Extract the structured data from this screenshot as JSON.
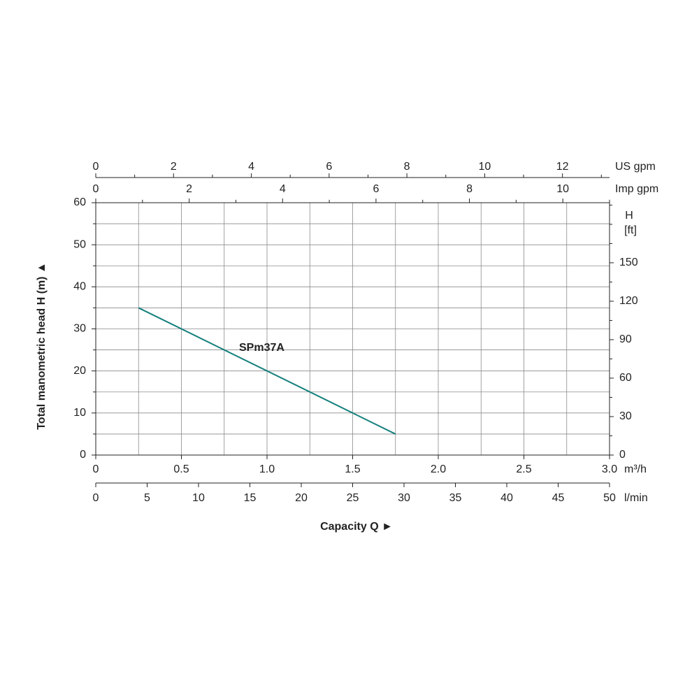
{
  "chart_data": {
    "type": "line",
    "x_label": "Capacity Q  ►",
    "y_label": "Total manometric head H (m)  ▲",
    "x_unit": "m³/h",
    "xlim": [
      0,
      3
    ],
    "xticks": [
      0,
      0.5,
      {
        "value": 1,
        "label": "1.0"
      },
      1.5,
      {
        "value": 2,
        "label": "2.0"
      },
      2.5,
      {
        "value": 3,
        "label": "3.0"
      }
    ],
    "xminor": [
      0.25,
      0.75,
      1.25,
      1.75,
      2.25,
      2.75
    ],
    "ylim": [
      0,
      60
    ],
    "yticks": [
      0,
      10,
      20,
      30,
      40,
      50,
      60
    ],
    "yminor": [
      5,
      15,
      25,
      35,
      45,
      55
    ],
    "grid": true,
    "series": [
      {
        "name": "SPm37A",
        "color": "#14807d",
        "x": [
          0.25,
          1.75
        ],
        "values": [
          35,
          5
        ]
      }
    ],
    "secondary_axes": [
      {
        "label": "US gpm",
        "side": "top",
        "lim": [
          0,
          13.21
        ],
        "ticks": [
          0,
          2,
          4,
          6,
          8,
          10,
          12
        ],
        "minor": [
          1,
          3,
          5,
          7,
          9,
          11,
          13
        ]
      },
      {
        "label": "Imp gpm",
        "side": "top2",
        "lim": [
          0,
          11
        ],
        "ticks": [
          0,
          2,
          4,
          6,
          8,
          10
        ],
        "minor": [
          1,
          3,
          5,
          7,
          9,
          11
        ]
      },
      {
        "label": "l/min",
        "side": "bottom",
        "lim": [
          0,
          50
        ],
        "ticks": [
          0,
          5,
          10,
          15,
          20,
          25,
          30,
          35,
          40,
          45,
          50
        ],
        "minor": []
      },
      {
        "label": [
          "H",
          "[ft]"
        ],
        "side": "right",
        "lim": [
          0,
          196.85
        ],
        "ticks": [
          0,
          30,
          60,
          90,
          120,
          150
        ],
        "minor": [
          15,
          45,
          75,
          105,
          135,
          165,
          180,
          195
        ]
      }
    ]
  }
}
